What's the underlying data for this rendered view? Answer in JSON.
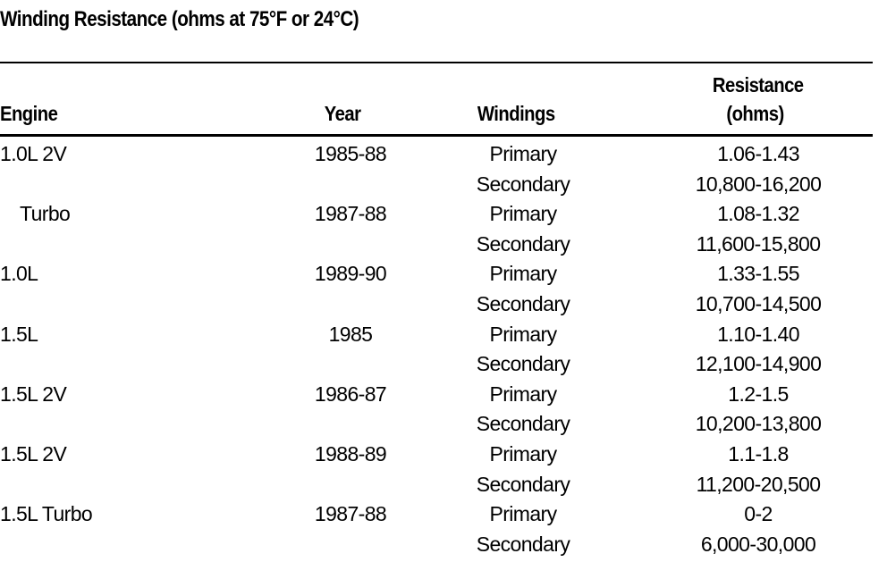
{
  "title": "Winding Resistance (ohms at 75°F or 24°C)",
  "table": {
    "headers": {
      "engine": "Engine",
      "year": "Year",
      "windings": "Windings",
      "resistance_line1": "Resistance",
      "resistance_line2": "(ohms)"
    },
    "rows": [
      {
        "engine": "1.0L 2V",
        "year": "1985-88",
        "windings": "Primary",
        "resistance": "1.06-1.43"
      },
      {
        "engine": "",
        "year": "",
        "windings": "Secondary",
        "resistance": "10,800-16,200"
      },
      {
        "engine": "Turbo",
        "year": "1987-88",
        "windings": "Primary",
        "resistance": "1.08-1.32"
      },
      {
        "engine": "",
        "year": "",
        "windings": "Secondary",
        "resistance": "11,600-15,800"
      },
      {
        "engine": "1.0L",
        "year": "1989-90",
        "windings": "Primary",
        "resistance": "1.33-1.55"
      },
      {
        "engine": "",
        "year": "",
        "windings": "Secondary",
        "resistance": "10,700-14,500"
      },
      {
        "engine": "1.5L",
        "year": "1985",
        "windings": "Primary",
        "resistance": "1.10-1.40"
      },
      {
        "engine": "",
        "year": "",
        "windings": "Secondary",
        "resistance": "12,100-14,900"
      },
      {
        "engine": "1.5L 2V",
        "year": "1986-87",
        "windings": "Primary",
        "resistance": "1.2-1.5"
      },
      {
        "engine": "",
        "year": "",
        "windings": "Secondary",
        "resistance": "10,200-13,800"
      },
      {
        "engine": "1.5L 2V",
        "year": "1988-89",
        "windings": "Primary",
        "resistance": "1.1-1.8"
      },
      {
        "engine": "",
        "year": "",
        "windings": "Secondary",
        "resistance": "11,200-20,500"
      },
      {
        "engine": "1.5L Turbo",
        "year": "1987-88",
        "windings": "Primary",
        "resistance": "0-2"
      },
      {
        "engine": "",
        "year": "",
        "windings": "Secondary",
        "resistance": "6,000-30,000"
      }
    ]
  }
}
